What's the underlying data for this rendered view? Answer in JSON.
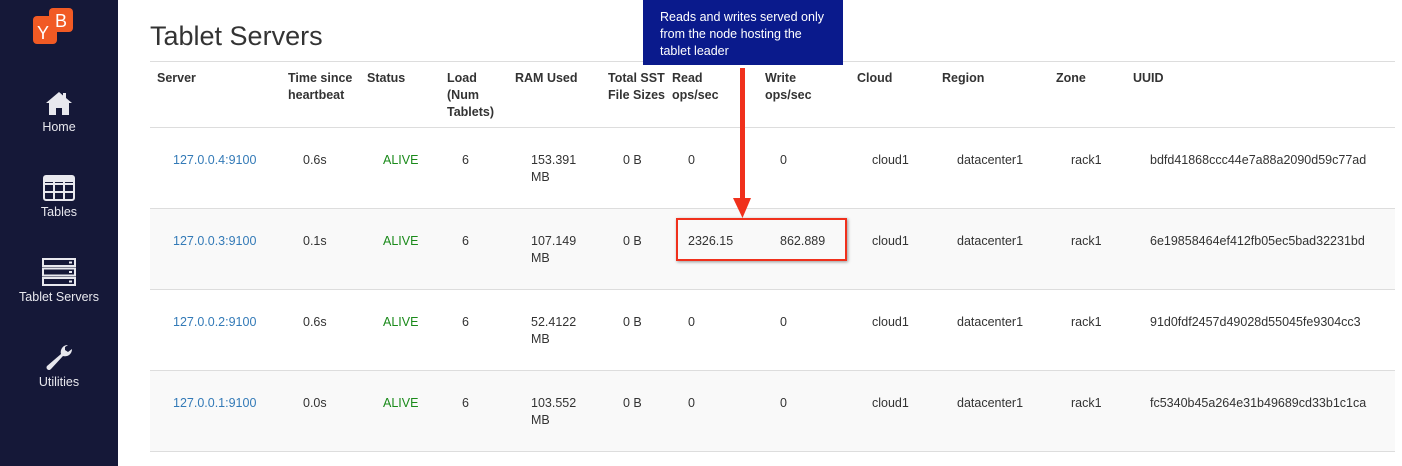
{
  "sidebar": {
    "logo": "YB",
    "items": [
      {
        "label": "Home",
        "icon": "home-icon"
      },
      {
        "label": "Tables",
        "icon": "table-icon"
      },
      {
        "label": "Tablet Servers",
        "icon": "server-icon"
      },
      {
        "label": "Utilities",
        "icon": "wrench-icon"
      }
    ]
  },
  "page_title": "Tablet Servers",
  "columns": [
    "Server",
    "Time since heartbeat",
    "Status",
    "Load (Num Tablets)",
    "RAM Used",
    "Total SST File Sizes",
    "Read ops/sec",
    "Write ops/sec",
    "Cloud",
    "Region",
    "Zone",
    "UUID"
  ],
  "rows": [
    [
      "127.0.0.4:9100",
      "0.6s",
      "ALIVE",
      "6",
      "153.391 MB",
      "0 B",
      "0",
      "0",
      "cloud1",
      "datacenter1",
      "rack1",
      "bdfd41868ccc44e7a88a2090d59c77ad"
    ],
    [
      "127.0.0.3:9100",
      "0.1s",
      "ALIVE",
      "6",
      "107.149 MB",
      "0 B",
      "2326.15",
      "862.889",
      "cloud1",
      "datacenter1",
      "rack1",
      "6e19858464ef412fb05ec5bad32231bd"
    ],
    [
      "127.0.0.2:9100",
      "0.6s",
      "ALIVE",
      "6",
      "52.4122 MB",
      "0 B",
      "0",
      "0",
      "cloud1",
      "datacenter1",
      "rack1",
      "91d0fdf2457d49028d55045fe9304cc3"
    ],
    [
      "127.0.0.1:9100",
      "0.0s",
      "ALIVE",
      "6",
      "103.552 MB",
      "0 B",
      "0",
      "0",
      "cloud1",
      "datacenter1",
      "rack1",
      "fc5340b45a264e31b49689cd33b1c1ca"
    ]
  ],
  "annotation": "Reads and writes served only from the node hosting the tablet leader",
  "colors": {
    "sidebar": "#151838",
    "logo": "#f15a24",
    "link": "#337ab7",
    "alive": "#1a8a1a",
    "annotation_bg": "#0a1a8c",
    "highlight": "#f0301c"
  }
}
